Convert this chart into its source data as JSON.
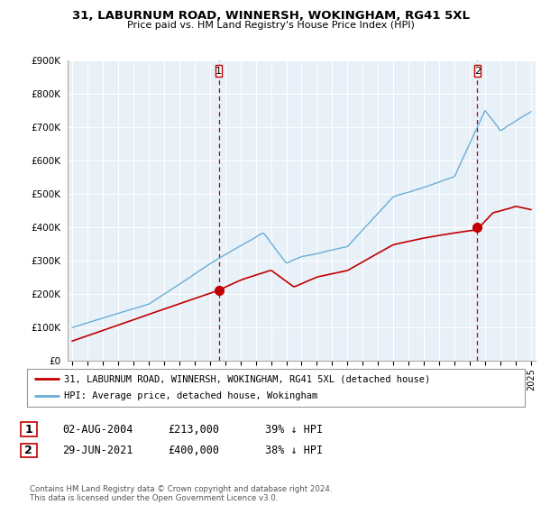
{
  "title1": "31, LABURNUM ROAD, WINNERSH, WOKINGHAM, RG41 5XL",
  "title2": "Price paid vs. HM Land Registry's House Price Index (HPI)",
  "ylim": [
    0,
    900000
  ],
  "yticks": [
    0,
    100000,
    200000,
    300000,
    400000,
    500000,
    600000,
    700000,
    800000,
    900000
  ],
  "ytick_labels": [
    "£0",
    "£100K",
    "£200K",
    "£300K",
    "£400K",
    "£500K",
    "£600K",
    "£700K",
    "£800K",
    "£900K"
  ],
  "hpi_color": "#6aaed6",
  "price_color": "#c00000",
  "vline_color": "#c00000",
  "background_color": "#ffffff",
  "chart_bg_color": "#e8f0f8",
  "grid_color": "#ffffff",
  "legend_label_price": "31, LABURNUM ROAD, WINNERSH, WOKINGHAM, RG41 5XL (detached house)",
  "legend_label_hpi": "HPI: Average price, detached house, Wokingham",
  "annotation1_date": "02-AUG-2004",
  "annotation1_price": "£213,000",
  "annotation1_pct": "39% ↓ HPI",
  "annotation2_date": "29-JUN-2021",
  "annotation2_price": "£400,000",
  "annotation2_pct": "38% ↓ HPI",
  "footer": "Contains HM Land Registry data © Crown copyright and database right 2024.\nThis data is licensed under the Open Government Licence v3.0.",
  "sale1_year": 2004.58,
  "sale1_value": 213000,
  "sale2_year": 2021.49,
  "sale2_value": 400000
}
